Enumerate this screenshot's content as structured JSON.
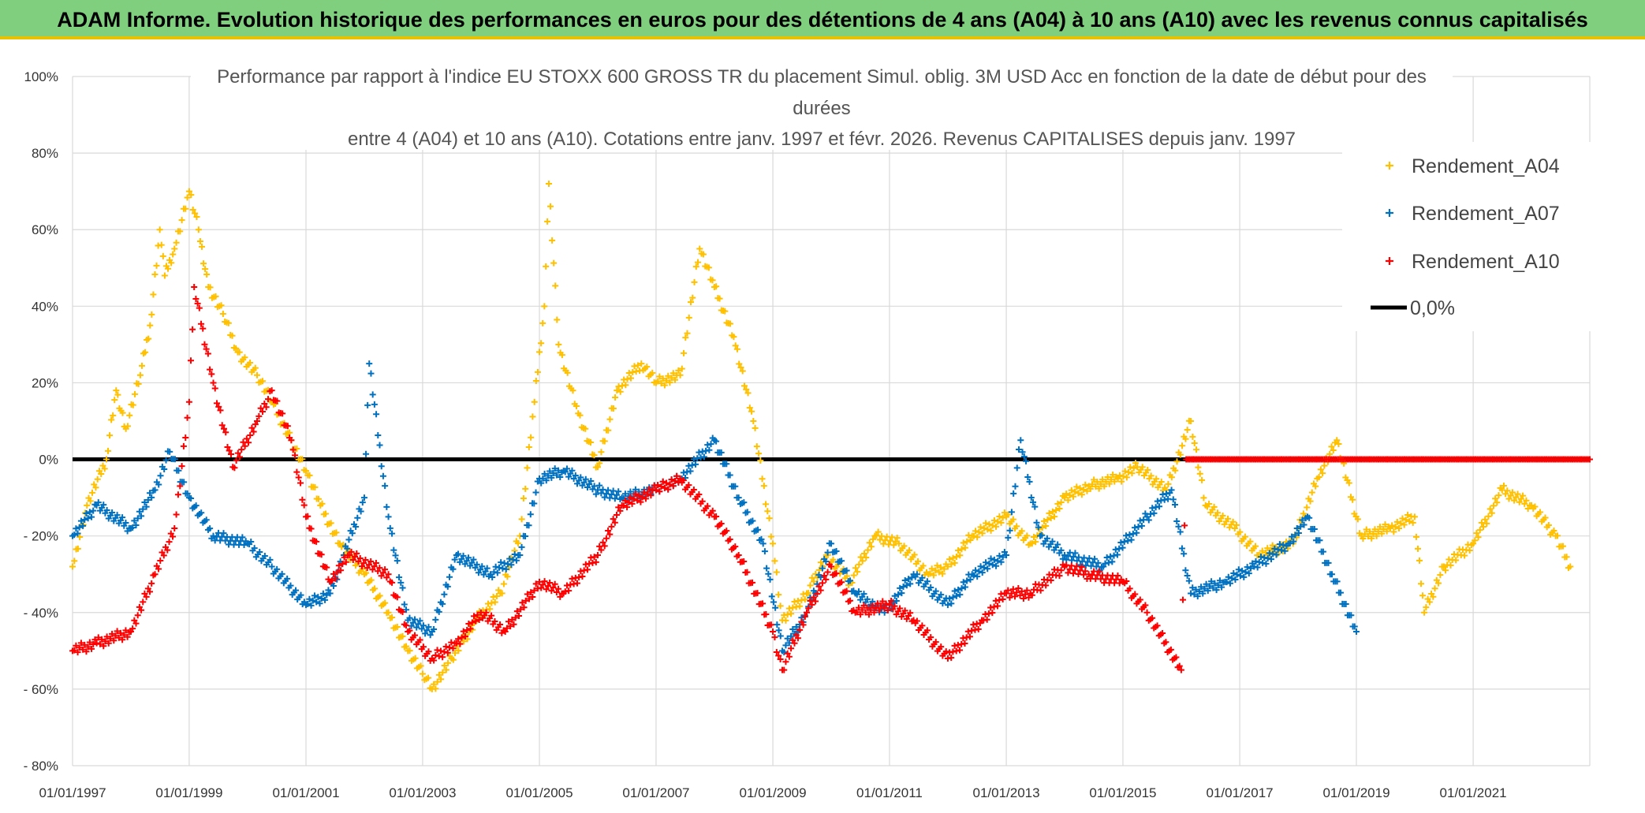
{
  "header": {
    "title": "ADAM Informe. Evolution historique des performances en euros pour des détentions de 4 ans (A04) à 10 ans (A10) avec les revenus connus capitalisés"
  },
  "chart_data": {
    "type": "scatter",
    "title_lines": [
      "Performance par rapport à l'indice EU STOXX 600 GROSS TR  du placement Simul. oblig. 3M USD Acc en fonction de la date de début pour des",
      "durées",
      "entre 4 (A04) et 10 ans (A10). Cotations entre janv. 1997 et févr. 2026. Revenus CAPITALISES depuis janv. 1997"
    ],
    "x_ticks": [
      "01/01/1997",
      "01/01/1999",
      "01/01/2001",
      "01/01/2003",
      "01/01/2005",
      "01/01/2007",
      "01/01/2009",
      "01/01/2011",
      "01/01/2013",
      "01/01/2015",
      "01/01/2017",
      "01/01/2019",
      "01/01/2021"
    ],
    "y_ticks": [
      "100%",
      "80%",
      "60%",
      "40%",
      "20%",
      "0%",
      "- 20%",
      "- 40%",
      "- 60%",
      "- 80%"
    ],
    "xlim": [
      "1997-01-01",
      "2023-01-01"
    ],
    "ylim": [
      -80,
      100
    ],
    "grid": true,
    "legend_position": "top-right",
    "series": [
      {
        "name": "Rendement_A04",
        "color": "#ffc000",
        "marker": "+",
        "points": [
          [
            "1997-01-01",
            -28
          ],
          [
            "1997-04-01",
            -12
          ],
          [
            "1997-08-01",
            0
          ],
          [
            "1997-10-01",
            18
          ],
          [
            "1997-12-01",
            8
          ],
          [
            "1998-03-01",
            22
          ],
          [
            "1998-05-01",
            35
          ],
          [
            "1998-07-01",
            60
          ],
          [
            "1998-08-01",
            48
          ],
          [
            "1998-10-01",
            55
          ],
          [
            "1999-01-01",
            70
          ],
          [
            "1999-03-01",
            60
          ],
          [
            "1999-05-01",
            45
          ],
          [
            "1999-08-01",
            38
          ],
          [
            "1999-11-01",
            28
          ],
          [
            "2000-03-01",
            22
          ],
          [
            "2000-06-01",
            15
          ],
          [
            "2000-10-01",
            5
          ],
          [
            "2001-01-01",
            -3
          ],
          [
            "2001-04-01",
            -12
          ],
          [
            "2001-08-01",
            -22
          ],
          [
            "2002-01-01",
            -30
          ],
          [
            "2002-06-01",
            -40
          ],
          [
            "2002-10-01",
            -50
          ],
          [
            "2003-01-01",
            -56
          ],
          [
            "2003-03-01",
            -60
          ],
          [
            "2003-07-01",
            -52
          ],
          [
            "2003-12-01",
            -42
          ],
          [
            "2004-05-01",
            -35
          ],
          [
            "2004-09-01",
            -20
          ],
          [
            "2004-12-01",
            15
          ],
          [
            "2005-02-01",
            40
          ],
          [
            "2005-03-01",
            72
          ],
          [
            "2005-05-01",
            30
          ],
          [
            "2005-09-01",
            12
          ],
          [
            "2006-01-01",
            -2
          ],
          [
            "2006-05-01",
            18
          ],
          [
            "2006-10-01",
            25
          ],
          [
            "2007-01-01",
            20
          ],
          [
            "2007-06-01",
            22
          ],
          [
            "2007-10-01",
            55
          ],
          [
            "2008-01-01",
            45
          ],
          [
            "2008-05-01",
            32
          ],
          [
            "2008-09-01",
            10
          ],
          [
            "2009-01-01",
            -22
          ],
          [
            "2009-03-01",
            -42
          ],
          [
            "2009-08-01",
            -35
          ],
          [
            "2009-12-01",
            -25
          ],
          [
            "2010-05-01",
            -32
          ],
          [
            "2010-10-01",
            -20
          ],
          [
            "2011-03-01",
            -22
          ],
          [
            "2011-09-01",
            -30
          ],
          [
            "2012-01-01",
            -28
          ],
          [
            "2012-06-01",
            -20
          ],
          [
            "2013-01-01",
            -15
          ],
          [
            "2013-06-01",
            -22
          ],
          [
            "2014-01-01",
            -10
          ],
          [
            "2014-06-01",
            -7
          ],
          [
            "2014-12-01",
            -5
          ],
          [
            "2015-04-01",
            -2
          ],
          [
            "2015-10-01",
            -8
          ],
          [
            "2016-03-01",
            10
          ],
          [
            "2016-06-01",
            -12
          ],
          [
            "2016-12-01",
            -18
          ],
          [
            "2017-05-01",
            -25
          ],
          [
            "2017-12-01",
            -22
          ],
          [
            "2018-05-01",
            -5
          ],
          [
            "2018-09-01",
            5
          ],
          [
            "2019-02-01",
            -20
          ],
          [
            "2019-08-01",
            -18
          ],
          [
            "2020-01-01",
            -15
          ],
          [
            "2020-03-01",
            -40
          ],
          [
            "2020-07-01",
            -28
          ],
          [
            "2021-01-01",
            -22
          ],
          [
            "2021-07-01",
            -8
          ],
          [
            "2022-01-01",
            -12
          ],
          [
            "2022-06-01",
            -20
          ],
          [
            "2022-09-01",
            -28
          ]
        ]
      },
      {
        "name": "Rendement_A07",
        "color": "#0070c0",
        "marker": "+",
        "points": [
          [
            "1997-01-01",
            -20
          ],
          [
            "1997-06-01",
            -12
          ],
          [
            "1998-01-01",
            -18
          ],
          [
            "1998-06-01",
            -8
          ],
          [
            "1998-09-01",
            2
          ],
          [
            "1999-01-01",
            -10
          ],
          [
            "1999-06-01",
            -20
          ],
          [
            "2000-01-01",
            -22
          ],
          [
            "2000-06-01",
            -28
          ],
          [
            "2001-01-01",
            -38
          ],
          [
            "2001-06-01",
            -35
          ],
          [
            "2002-01-01",
            -10
          ],
          [
            "2002-02-01",
            25
          ],
          [
            "2002-06-01",
            -15
          ],
          [
            "2002-10-01",
            -42
          ],
          [
            "2003-03-01",
            -45
          ],
          [
            "2003-08-01",
            -25
          ],
          [
            "2004-03-01",
            -30
          ],
          [
            "2004-09-01",
            -25
          ],
          [
            "2005-01-01",
            -5
          ],
          [
            "2005-06-01",
            -3
          ],
          [
            "2006-01-01",
            -8
          ],
          [
            "2006-06-01",
            -10
          ],
          [
            "2007-01-01",
            -8
          ],
          [
            "2007-06-01",
            -5
          ],
          [
            "2008-01-01",
            5
          ],
          [
            "2008-06-01",
            -10
          ],
          [
            "2008-11-01",
            -22
          ],
          [
            "2009-03-01",
            -50
          ],
          [
            "2009-08-01",
            -40
          ],
          [
            "2010-01-01",
            -22
          ],
          [
            "2010-06-01",
            -35
          ],
          [
            "2010-12-01",
            -40
          ],
          [
            "2011-06-01",
            -30
          ],
          [
            "2012-01-01",
            -38
          ],
          [
            "2012-06-01",
            -30
          ],
          [
            "2013-01-01",
            -25
          ],
          [
            "2013-04-01",
            5
          ],
          [
            "2013-08-01",
            -20
          ],
          [
            "2014-01-01",
            -25
          ],
          [
            "2014-09-01",
            -28
          ],
          [
            "2015-06-01",
            -15
          ],
          [
            "2015-11-01",
            -8
          ],
          [
            "2016-03-01",
            -35
          ],
          [
            "2016-10-01",
            -32
          ],
          [
            "2017-04-01",
            -28
          ],
          [
            "2017-11-01",
            -22
          ],
          [
            "2018-03-01",
            -15
          ],
          [
            "2018-08-01",
            -30
          ],
          [
            "2019-01-01",
            -45
          ]
        ]
      },
      {
        "name": "Rendement_A10",
        "color": "#ff0000",
        "marker": "+",
        "points": [
          [
            "1997-01-01",
            -50
          ],
          [
            "1997-06-01",
            -48
          ],
          [
            "1998-01-01",
            -45
          ],
          [
            "1998-06-01",
            -30
          ],
          [
            "1998-10-01",
            -18
          ],
          [
            "1999-01-01",
            15
          ],
          [
            "1999-02-01",
            45
          ],
          [
            "1999-06-01",
            20
          ],
          [
            "1999-10-01",
            -2
          ],
          [
            "2000-03-01",
            10
          ],
          [
            "2000-06-01",
            18
          ],
          [
            "2000-10-01",
            5
          ],
          [
            "2001-01-01",
            -15
          ],
          [
            "2001-06-01",
            -32
          ],
          [
            "2001-10-01",
            -25
          ],
          [
            "2002-06-01",
            -30
          ],
          [
            "2002-10-01",
            -45
          ],
          [
            "2003-03-01",
            -52
          ],
          [
            "2003-08-01",
            -48
          ],
          [
            "2004-01-01",
            -40
          ],
          [
            "2004-06-01",
            -45
          ],
          [
            "2005-01-01",
            -32
          ],
          [
            "2005-06-01",
            -35
          ],
          [
            "2006-01-01",
            -25
          ],
          [
            "2006-06-01",
            -12
          ],
          [
            "2007-01-01",
            -8
          ],
          [
            "2007-06-01",
            -5
          ],
          [
            "2008-01-01",
            -15
          ],
          [
            "2008-06-01",
            -25
          ],
          [
            "2009-01-01",
            -45
          ],
          [
            "2009-03-01",
            -55
          ],
          [
            "2009-08-01",
            -40
          ],
          [
            "2010-01-01",
            -28
          ],
          [
            "2010-06-01",
            -40
          ],
          [
            "2011-01-01",
            -38
          ],
          [
            "2011-06-01",
            -42
          ],
          [
            "2012-01-01",
            -52
          ],
          [
            "2012-08-01",
            -42
          ],
          [
            "2013-01-01",
            -35
          ],
          [
            "2013-06-01",
            -35
          ],
          [
            "2014-01-01",
            -28
          ],
          [
            "2014-06-01",
            -30
          ],
          [
            "2015-01-01",
            -32
          ],
          [
            "2015-06-01",
            -40
          ],
          [
            "2016-01-01",
            -55
          ],
          [
            "2016-02-01",
            0
          ],
          [
            "2023-01-01",
            0
          ]
        ]
      }
    ],
    "reference_line": {
      "name": "0,0%",
      "value": 0,
      "color": "#000000"
    }
  }
}
